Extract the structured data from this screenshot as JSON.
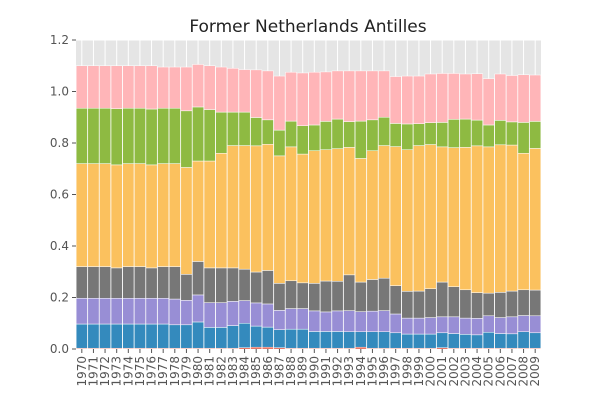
{
  "chart_data": {
    "type": "bar",
    "stacked": true,
    "title": "Former Netherlands Antilles",
    "xlabel": "",
    "ylabel": "",
    "ylim": [
      0,
      1.2
    ],
    "yticks": [
      "0.0",
      "0.2",
      "0.4",
      "0.6",
      "0.8",
      "1.0",
      "1.2"
    ],
    "grid": true,
    "legend": "none",
    "categories": [
      "1970",
      "1971",
      "1972",
      "1973",
      "1974",
      "1975",
      "1976",
      "1977",
      "1978",
      "1979",
      "1980",
      "1981",
      "1982",
      "1983",
      "1984",
      "1985",
      "1986",
      "1987",
      "1988",
      "1989",
      "1990",
      "1991",
      "1992",
      "1993",
      "1994",
      "1995",
      "1996",
      "1997",
      "1998",
      "1999",
      "2000",
      "2001",
      "2002",
      "2003",
      "2004",
      "2005",
      "2006",
      "2007",
      "2008",
      "2009"
    ],
    "series": [
      {
        "color": "#e24a33",
        "values": [
          0.003,
          0.003,
          0.003,
          0.003,
          0.003,
          0.003,
          0.003,
          0.003,
          0.003,
          0.003,
          0.003,
          0.003,
          0.003,
          0.003,
          0.005,
          0.007,
          0.007,
          0.005,
          0.003,
          0.003,
          0.003,
          0.003,
          0.003,
          0.003,
          0.007,
          0.003,
          0.003,
          0.003,
          0.003,
          0.003,
          0.003,
          0.005,
          0.003,
          0.003,
          0.003,
          0.003,
          0.003,
          0.003,
          0.003,
          0.003
        ]
      },
      {
        "color": "#348abd",
        "values": [
          0.094,
          0.094,
          0.094,
          0.094,
          0.094,
          0.094,
          0.094,
          0.094,
          0.091,
          0.091,
          0.102,
          0.081,
          0.081,
          0.088,
          0.095,
          0.082,
          0.078,
          0.07,
          0.074,
          0.074,
          0.065,
          0.065,
          0.065,
          0.064,
          0.06,
          0.064,
          0.064,
          0.06,
          0.055,
          0.055,
          0.055,
          0.058,
          0.057,
          0.054,
          0.052,
          0.062,
          0.057,
          0.056,
          0.064,
          0.06
        ]
      },
      {
        "color": "#988ed5",
        "values": [
          0.1,
          0.1,
          0.1,
          0.1,
          0.1,
          0.1,
          0.1,
          0.1,
          0.1,
          0.095,
          0.105,
          0.096,
          0.096,
          0.094,
          0.088,
          0.09,
          0.09,
          0.075,
          0.08,
          0.08,
          0.08,
          0.076,
          0.08,
          0.082,
          0.078,
          0.08,
          0.082,
          0.073,
          0.062,
          0.062,
          0.064,
          0.062,
          0.065,
          0.063,
          0.064,
          0.064,
          0.062,
          0.066,
          0.063,
          0.066
        ]
      },
      {
        "color": "#777777",
        "values": [
          0.123,
          0.123,
          0.123,
          0.118,
          0.123,
          0.123,
          0.118,
          0.123,
          0.126,
          0.101,
          0.13,
          0.135,
          0.135,
          0.13,
          0.122,
          0.12,
          0.13,
          0.105,
          0.108,
          0.1,
          0.107,
          0.12,
          0.115,
          0.139,
          0.115,
          0.123,
          0.126,
          0.11,
          0.104,
          0.105,
          0.112,
          0.135,
          0.117,
          0.11,
          0.1,
          0.088,
          0.098,
          0.1,
          0.1,
          0.1
        ]
      },
      {
        "color": "#fbc15e",
        "values": [
          0.4,
          0.4,
          0.4,
          0.4,
          0.4,
          0.4,
          0.4,
          0.4,
          0.4,
          0.415,
          0.39,
          0.415,
          0.445,
          0.475,
          0.48,
          0.49,
          0.49,
          0.495,
          0.52,
          0.5,
          0.515,
          0.51,
          0.515,
          0.495,
          0.48,
          0.5,
          0.515,
          0.54,
          0.55,
          0.565,
          0.56,
          0.525,
          0.54,
          0.553,
          0.57,
          0.568,
          0.573,
          0.567,
          0.53,
          0.55
        ]
      },
      {
        "color": "#8eba42",
        "values": [
          0.215,
          0.215,
          0.215,
          0.218,
          0.215,
          0.215,
          0.217,
          0.215,
          0.215,
          0.22,
          0.21,
          0.2,
          0.16,
          0.13,
          0.13,
          0.11,
          0.095,
          0.1,
          0.1,
          0.11,
          0.1,
          0.11,
          0.115,
          0.1,
          0.145,
          0.12,
          0.11,
          0.09,
          0.1,
          0.085,
          0.085,
          0.095,
          0.11,
          0.11,
          0.1,
          0.085,
          0.095,
          0.09,
          0.12,
          0.105
        ]
      },
      {
        "color": "#ffb5b8",
        "values": [
          0.165,
          0.165,
          0.165,
          0.167,
          0.165,
          0.165,
          0.168,
          0.16,
          0.16,
          0.17,
          0.165,
          0.17,
          0.175,
          0.17,
          0.165,
          0.185,
          0.19,
          0.21,
          0.19,
          0.205,
          0.205,
          0.192,
          0.187,
          0.197,
          0.195,
          0.19,
          0.18,
          0.182,
          0.186,
          0.185,
          0.189,
          0.19,
          0.178,
          0.175,
          0.18,
          0.18,
          0.18,
          0.18,
          0.185,
          0.18
        ]
      }
    ]
  }
}
